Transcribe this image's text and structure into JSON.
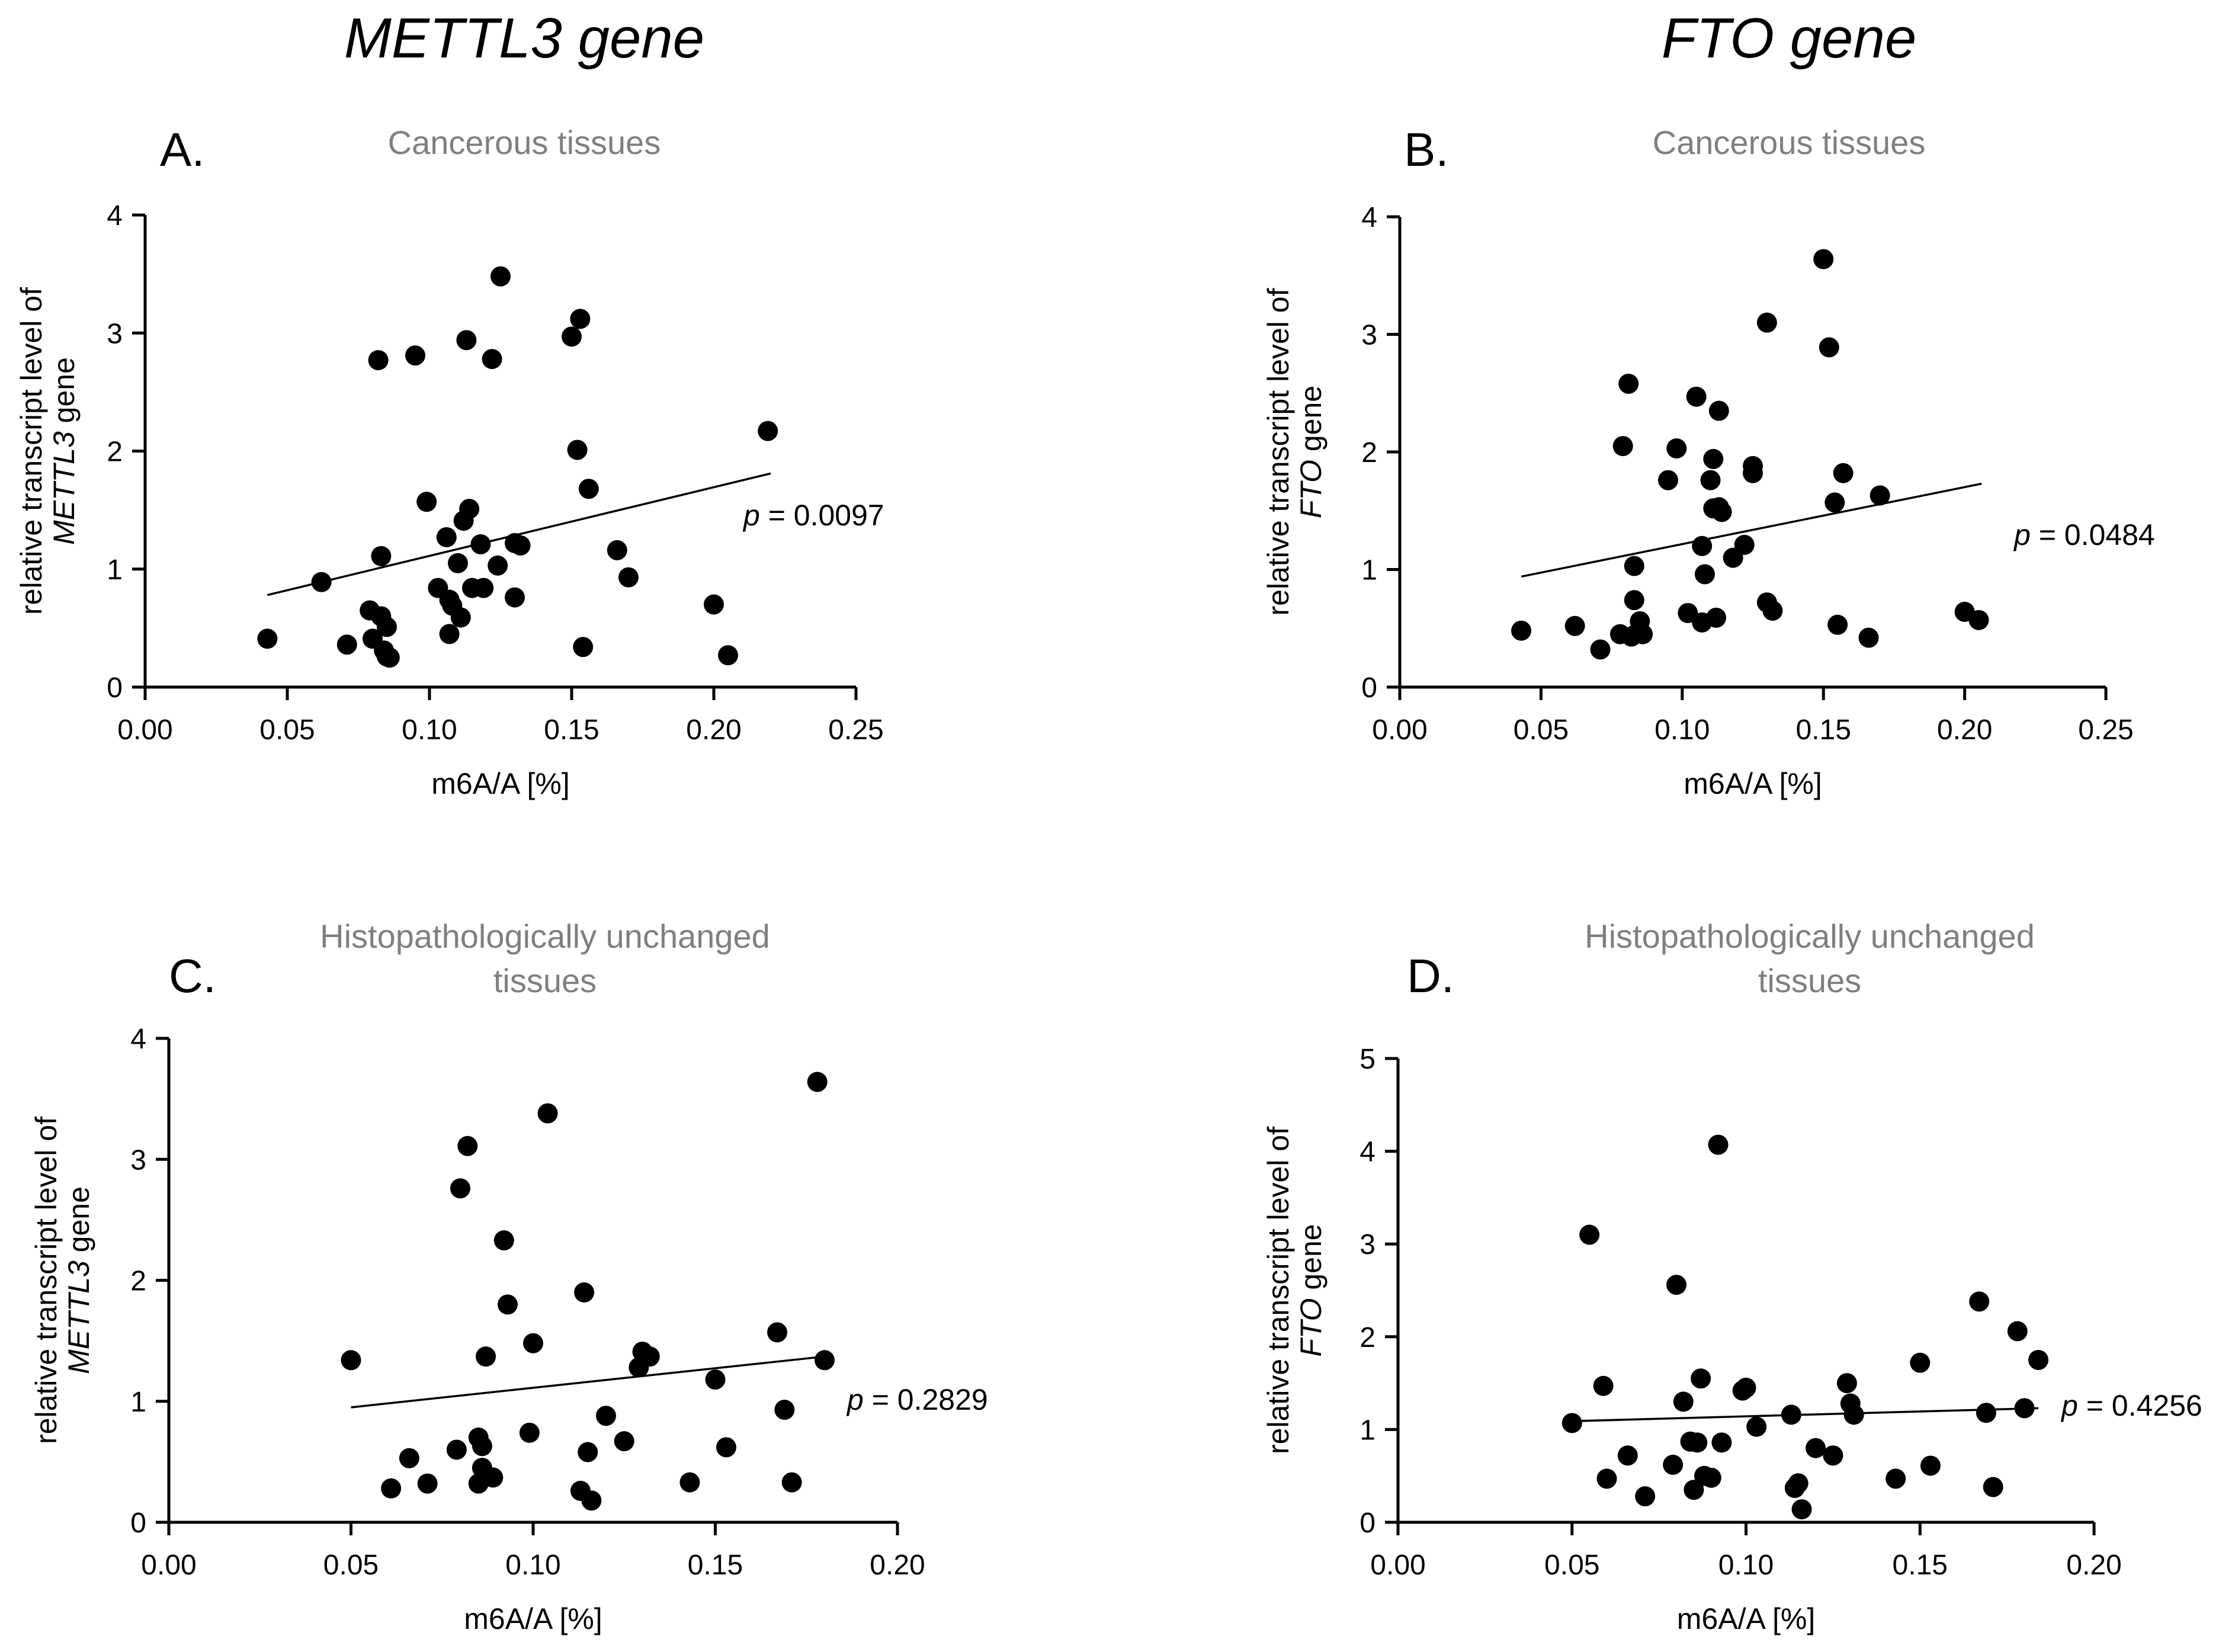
{
  "column_titles": [
    "METTL3 gene",
    "FTO gene"
  ],
  "chart_data": [
    {
      "type": "scatter",
      "panel": "A.",
      "title": "Cancerous tissues",
      "xlabel": "m6A/A [%]",
      "ylabel_prefix": "relative transcript level of",
      "ylabel_gene": "METTL3",
      "ylabel_suffix": " gene",
      "xlim": [
        0,
        0.25
      ],
      "ylim": [
        0,
        4
      ],
      "xticks": [
        "0.00",
        "0.05",
        "0.10",
        "0.15",
        "0.20",
        "0.25"
      ],
      "yticks": [
        "0",
        "1",
        "2",
        "3",
        "4"
      ],
      "p_label": "p",
      "p_value": " = 0.0097",
      "trend": {
        "x1": 0.043,
        "y1": 0.78,
        "x2": 0.22,
        "y2": 1.81
      },
      "points": [
        [
          0.043,
          0.41
        ],
        [
          0.062,
          0.89
        ],
        [
          0.071,
          0.36
        ],
        [
          0.079,
          0.65
        ],
        [
          0.08,
          0.41
        ],
        [
          0.082,
          2.77
        ],
        [
          0.083,
          0.6
        ],
        [
          0.083,
          1.11
        ],
        [
          0.084,
          0.31
        ],
        [
          0.085,
          0.26
        ],
        [
          0.085,
          0.51
        ],
        [
          0.086,
          0.25
        ],
        [
          0.095,
          2.81
        ],
        [
          0.099,
          1.57
        ],
        [
          0.103,
          0.84
        ],
        [
          0.106,
          1.27
        ],
        [
          0.107,
          0.74
        ],
        [
          0.107,
          0.45
        ],
        [
          0.108,
          0.69
        ],
        [
          0.11,
          1.05
        ],
        [
          0.111,
          0.59
        ],
        [
          0.112,
          1.41
        ],
        [
          0.113,
          2.94
        ],
        [
          0.114,
          1.51
        ],
        [
          0.115,
          0.84
        ],
        [
          0.118,
          1.21
        ],
        [
          0.119,
          0.84
        ],
        [
          0.122,
          2.78
        ],
        [
          0.124,
          1.03
        ],
        [
          0.125,
          3.48
        ],
        [
          0.13,
          1.22
        ],
        [
          0.13,
          0.76
        ],
        [
          0.132,
          1.2
        ],
        [
          0.15,
          2.97
        ],
        [
          0.152,
          2.01
        ],
        [
          0.153,
          3.12
        ],
        [
          0.154,
          0.34
        ],
        [
          0.156,
          1.68
        ],
        [
          0.166,
          1.16
        ],
        [
          0.17,
          0.93
        ],
        [
          0.2,
          0.7
        ],
        [
          0.205,
          0.27
        ],
        [
          0.219,
          2.17
        ]
      ]
    },
    {
      "type": "scatter",
      "panel": "B.",
      "title": "Cancerous tissues",
      "xlabel": "m6A/A [%]",
      "ylabel_prefix": "relative transcript level of",
      "ylabel_gene": "FTO",
      "ylabel_suffix": " gene",
      "xlim": [
        0,
        0.25
      ],
      "ylim": [
        0,
        4
      ],
      "xticks": [
        "0.00",
        "0.05",
        "0.10",
        "0.15",
        "0.20",
        "0.25"
      ],
      "yticks": [
        "0",
        "1",
        "2",
        "3",
        "4"
      ],
      "p_label": "p",
      "p_value": " = 0.0484",
      "trend": {
        "x1": 0.043,
        "y1": 0.94,
        "x2": 0.206,
        "y2": 1.73
      },
      "points": [
        [
          0.043,
          0.48
        ],
        [
          0.062,
          0.52
        ],
        [
          0.071,
          0.32
        ],
        [
          0.078,
          0.45
        ],
        [
          0.079,
          2.05
        ],
        [
          0.081,
          2.58
        ],
        [
          0.082,
          0.43
        ],
        [
          0.083,
          1.03
        ],
        [
          0.083,
          0.74
        ],
        [
          0.084,
          0.46
        ],
        [
          0.085,
          0.56
        ],
        [
          0.086,
          0.45
        ],
        [
          0.095,
          1.76
        ],
        [
          0.098,
          2.03
        ],
        [
          0.102,
          0.63
        ],
        [
          0.105,
          2.47
        ],
        [
          0.107,
          0.55
        ],
        [
          0.107,
          1.2
        ],
        [
          0.108,
          0.96
        ],
        [
          0.11,
          1.76
        ],
        [
          0.111,
          1.94
        ],
        [
          0.111,
          1.52
        ],
        [
          0.112,
          0.59
        ],
        [
          0.113,
          2.35
        ],
        [
          0.113,
          1.53
        ],
        [
          0.114,
          1.49
        ],
        [
          0.118,
          1.1
        ],
        [
          0.122,
          1.21
        ],
        [
          0.125,
          1.88
        ],
        [
          0.125,
          1.82
        ],
        [
          0.13,
          3.1
        ],
        [
          0.13,
          0.72
        ],
        [
          0.132,
          0.65
        ],
        [
          0.15,
          3.64
        ],
        [
          0.152,
          2.89
        ],
        [
          0.154,
          1.57
        ],
        [
          0.155,
          0.53
        ],
        [
          0.157,
          1.82
        ],
        [
          0.166,
          0.42
        ],
        [
          0.17,
          1.63
        ],
        [
          0.2,
          0.64
        ],
        [
          0.205,
          0.57
        ]
      ]
    },
    {
      "type": "scatter",
      "panel": "C.",
      "title_lines": [
        "Histopathologically unchanged",
        "tissues"
      ],
      "xlabel": "m6A/A [%]",
      "ylabel_prefix": "relative transcript level of",
      "ylabel_gene": "METTL3",
      "ylabel_suffix": " gene",
      "xlim": [
        0,
        0.2
      ],
      "ylim": [
        0,
        4
      ],
      "xticks": [
        "0.00",
        "0.05",
        "0.10",
        "0.15",
        "0.20"
      ],
      "yticks": [
        "0",
        "1",
        "2",
        "3",
        "4"
      ],
      "p_label": "p",
      "p_value": " = 0.2829",
      "trend": {
        "x1": 0.05,
        "y1": 0.95,
        "x2": 0.18,
        "y2": 1.37
      },
      "points": [
        [
          0.05,
          1.34
        ],
        [
          0.061,
          0.28
        ],
        [
          0.066,
          0.53
        ],
        [
          0.071,
          0.32
        ],
        [
          0.079,
          0.6
        ],
        [
          0.08,
          2.76
        ],
        [
          0.082,
          3.11
        ],
        [
          0.085,
          0.7
        ],
        [
          0.085,
          0.32
        ],
        [
          0.086,
          0.45
        ],
        [
          0.086,
          0.63
        ],
        [
          0.087,
          1.37
        ],
        [
          0.089,
          0.37
        ],
        [
          0.092,
          2.33
        ],
        [
          0.093,
          1.8
        ],
        [
          0.099,
          0.74
        ],
        [
          0.1,
          1.48
        ],
        [
          0.104,
          3.38
        ],
        [
          0.113,
          0.26
        ],
        [
          0.114,
          1.9
        ],
        [
          0.115,
          0.58
        ],
        [
          0.116,
          0.18
        ],
        [
          0.12,
          0.88
        ],
        [
          0.125,
          0.67
        ],
        [
          0.129,
          1.28
        ],
        [
          0.13,
          1.41
        ],
        [
          0.132,
          1.37
        ],
        [
          0.143,
          0.33
        ],
        [
          0.15,
          1.18
        ],
        [
          0.153,
          0.62
        ],
        [
          0.167,
          1.57
        ],
        [
          0.169,
          0.93
        ],
        [
          0.171,
          0.33
        ],
        [
          0.178,
          3.64
        ],
        [
          0.18,
          1.34
        ]
      ]
    },
    {
      "type": "scatter",
      "panel": "D.",
      "title_lines": [
        "Histopathologically unchanged",
        "tissues"
      ],
      "xlabel": "m6A/A [%]",
      "ylabel_prefix": "relative transcript level of",
      "ylabel_gene": "FTO",
      "ylabel_suffix": " gene",
      "xlim": [
        0,
        0.2
      ],
      "ylim": [
        0,
        5
      ],
      "xticks": [
        "0.00",
        "0.05",
        "0.10",
        "0.15",
        "0.20"
      ],
      "yticks": [
        "0",
        "1",
        "2",
        "3",
        "4",
        "5"
      ],
      "p_label": "p",
      "p_value": " = 0.4256",
      "trend": {
        "x1": 0.05,
        "y1": 1.09,
        "x2": 0.184,
        "y2": 1.23
      },
      "points": [
        [
          0.05,
          1.07
        ],
        [
          0.055,
          3.1
        ],
        [
          0.059,
          1.47
        ],
        [
          0.06,
          0.47
        ],
        [
          0.066,
          0.72
        ],
        [
          0.071,
          0.28
        ],
        [
          0.079,
          0.62
        ],
        [
          0.08,
          2.56
        ],
        [
          0.082,
          1.3
        ],
        [
          0.084,
          0.87
        ],
        [
          0.085,
          0.35
        ],
        [
          0.086,
          0.86
        ],
        [
          0.087,
          1.55
        ],
        [
          0.088,
          0.5
        ],
        [
          0.09,
          0.48
        ],
        [
          0.092,
          4.07
        ],
        [
          0.093,
          0.86
        ],
        [
          0.099,
          1.42
        ],
        [
          0.1,
          1.45
        ],
        [
          0.103,
          1.03
        ],
        [
          0.113,
          1.16
        ],
        [
          0.114,
          0.37
        ],
        [
          0.115,
          0.42
        ],
        [
          0.116,
          0.14
        ],
        [
          0.12,
          0.8
        ],
        [
          0.125,
          0.72
        ],
        [
          0.129,
          1.5
        ],
        [
          0.13,
          1.28
        ],
        [
          0.131,
          1.16
        ],
        [
          0.143,
          0.47
        ],
        [
          0.15,
          1.72
        ],
        [
          0.153,
          0.61
        ],
        [
          0.167,
          2.38
        ],
        [
          0.169,
          1.18
        ],
        [
          0.171,
          0.38
        ],
        [
          0.178,
          2.06
        ],
        [
          0.18,
          1.23
        ],
        [
          0.184,
          1.75
        ]
      ]
    }
  ]
}
